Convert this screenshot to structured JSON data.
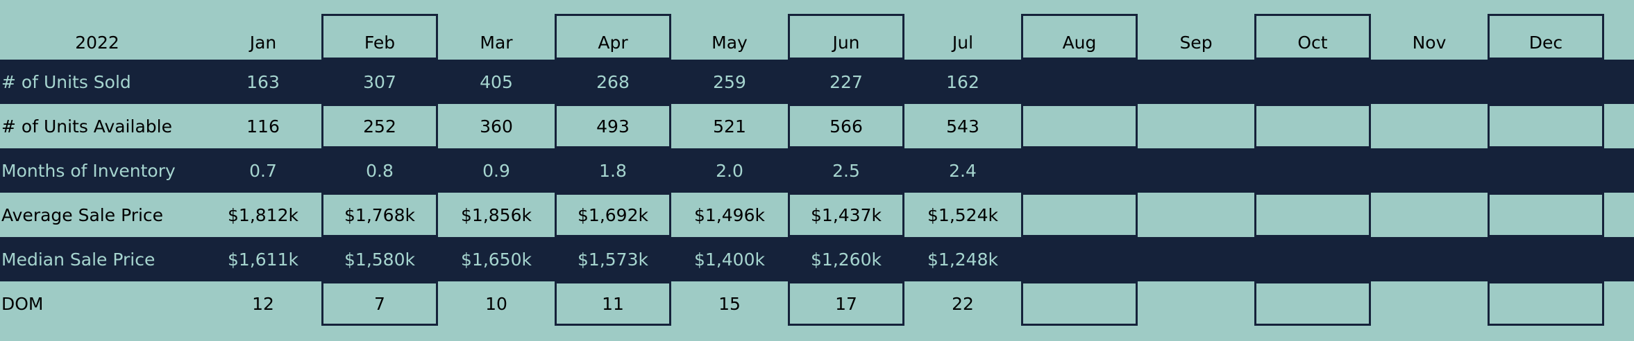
{
  "chart_data": {
    "type": "table",
    "year": "2022",
    "columns": [
      "Jan",
      "Feb",
      "Mar",
      "Apr",
      "May",
      "Jun",
      "Jul",
      "Aug",
      "Sep",
      "Oct",
      "Nov",
      "Dec"
    ],
    "rows": [
      {
        "label": "# of Units Sold",
        "values": [
          "163",
          "307",
          "405",
          "268",
          "259",
          "227",
          "162",
          "",
          "",
          "",
          "",
          ""
        ]
      },
      {
        "label": "# of Units Available",
        "values": [
          "116",
          "252",
          "360",
          "493",
          "521",
          "566",
          "543",
          "",
          "",
          "",
          "",
          ""
        ]
      },
      {
        "label": "Months of Inventory",
        "values": [
          "0.7",
          "0.8",
          "0.9",
          "1.8",
          "2.0",
          "2.5",
          "2.4",
          "",
          "",
          "",
          "",
          ""
        ]
      },
      {
        "label": "Average Sale Price",
        "values": [
          "$1,812k",
          "$1,768k",
          "$1,856k",
          "$1,692k",
          "$1,496k",
          "$1,437k",
          "$1,524k",
          "",
          "",
          "",
          "",
          ""
        ]
      },
      {
        "label": "Median Sale Price",
        "values": [
          "$1,611k",
          "$1,580k",
          "$1,650k",
          "$1,573k",
          "$1,400k",
          "$1,260k",
          "$1,248k",
          "",
          "",
          "",
          "",
          ""
        ]
      },
      {
        "label": "DOM",
        "values": [
          "12",
          "7",
          "10",
          "11",
          "15",
          "17",
          "22",
          "",
          "",
          "",
          "",
          ""
        ]
      }
    ]
  },
  "colors": {
    "background": "#9ecbc5",
    "dark_band": "#15223a",
    "dark_band_text": "#a6d5cf",
    "light_band_text": "#000000",
    "frame_border": "#15223a"
  }
}
